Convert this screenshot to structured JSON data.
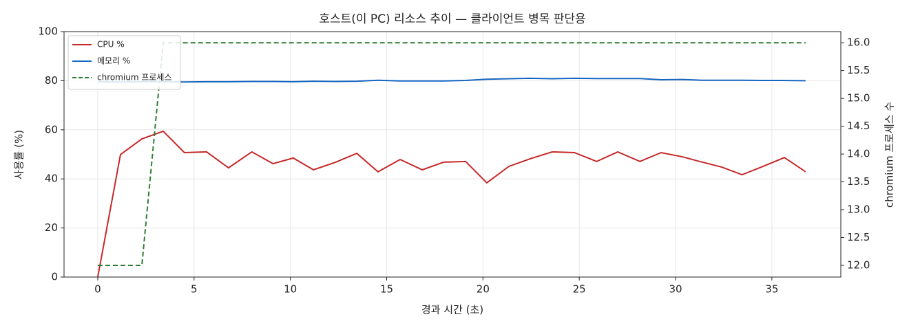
{
  "chart_data": {
    "type": "line",
    "title": "호스트(이 PC) 리소스 추이 — 클라이언트 병목 판단용",
    "x_label": "경과 시간 (초)",
    "y_label": "사용률 (%)",
    "y2_label": "chromium 프로세스 수",
    "x": [
      0,
      1.18,
      2.29,
      3.4,
      4.5,
      5.65,
      6.79,
      8.0,
      9.1,
      10.15,
      11.2,
      12.35,
      13.45,
      14.55,
      15.7,
      16.85,
      17.95,
      19.1,
      20.2,
      21.35,
      22.45,
      23.6,
      24.75,
      25.9,
      27.0,
      28.15,
      29.25,
      30.35,
      31.3,
      32.4,
      33.45,
      34.55,
      35.65,
      36.75
    ],
    "series": [
      {
        "name": "CPU %",
        "color": "#c62828",
        "linestyle": "solid",
        "axis": "y",
        "values": [
          0,
          49.9,
          56.3,
          59.4,
          50.7,
          51,
          44.5,
          51,
          46.2,
          48.5,
          43.7,
          46.8,
          50.4,
          42.9,
          47.9,
          43.7,
          46.8,
          47.1,
          38.4,
          45.1,
          48.2,
          51,
          50.7,
          47.1,
          51,
          47.1,
          50.7,
          49,
          47,
          44.8,
          41.7,
          45.1,
          48.7,
          42.9
        ]
      },
      {
        "name": "메모리 %",
        "color": "#1565c0",
        "linestyle": "solid",
        "axis": "y",
        "values": [
          79.6,
          79.5,
          79.6,
          79.6,
          79.5,
          79.6,
          79.6,
          79.7,
          79.7,
          79.6,
          79.8,
          79.7,
          79.8,
          80.2,
          79.9,
          79.9,
          79.9,
          80.1,
          80.6,
          80.8,
          81.0,
          80.8,
          81.0,
          80.9,
          80.9,
          80.9,
          80.4,
          80.5,
          80.2,
          80.2,
          80.2,
          80.1,
          80.1,
          80.0
        ]
      },
      {
        "name": "chromium 프로세스",
        "color": "#2e7d32",
        "linestyle": "dashed",
        "axis": "y2",
        "values": [
          12,
          12,
          12,
          16,
          16,
          16,
          16,
          16,
          16,
          16,
          16,
          16,
          16,
          16,
          16,
          16,
          16,
          16,
          16,
          16,
          16,
          16,
          16,
          16,
          16,
          16,
          16,
          16,
          16,
          16,
          16,
          16,
          16,
          16
        ]
      }
    ],
    "xlim": [
      -1.75,
      38.58
    ],
    "xticks": [
      0,
      5,
      10,
      15,
      20,
      25,
      30,
      35
    ],
    "ylim": [
      0,
      100
    ],
    "yticks": [
      0,
      20,
      40,
      60,
      80,
      100
    ],
    "y2lim": [
      11.79,
      16.2
    ],
    "y2ticks": [
      {
        "value": 12,
        "label": "12.0"
      },
      12.5,
      {
        "value": 13,
        "label": "13.0"
      },
      13.5,
      {
        "value": 14,
        "label": "14.0"
      },
      14.5,
      {
        "value": 15,
        "label": "15.0"
      },
      15.5,
      {
        "value": 16,
        "label": "16.0"
      }
    ],
    "grid": true,
    "legend": "upper left"
  }
}
